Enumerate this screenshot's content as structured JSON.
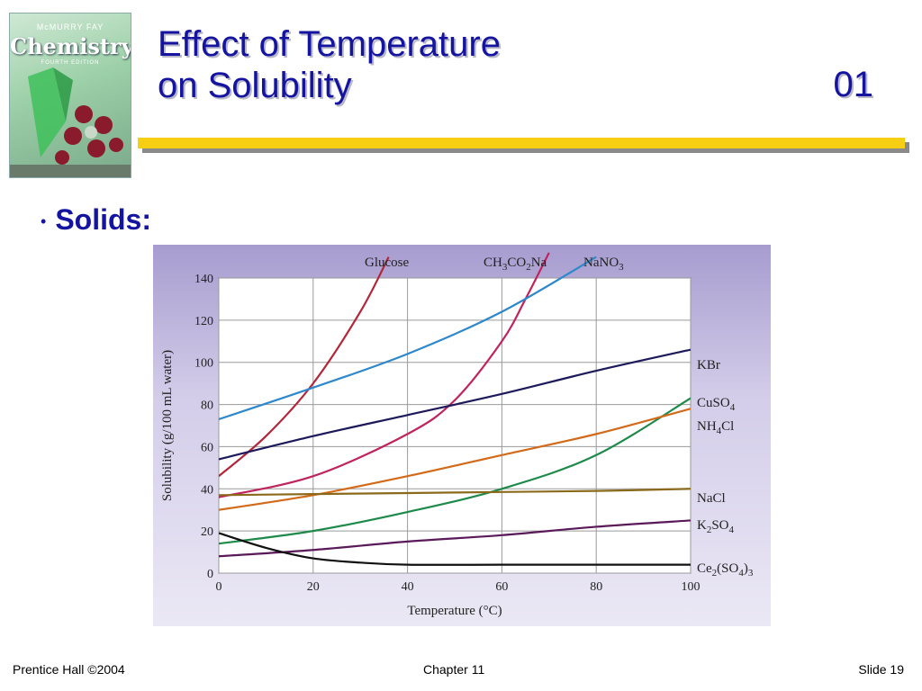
{
  "logo": {
    "authors": "McMURRY  FAY",
    "title": "Chemistry",
    "edition": "FOURTH EDITION"
  },
  "slide": {
    "title_line1": "Effect of Temperature",
    "title_line2": "on Solubility",
    "number": "01",
    "bullet": "Solids:"
  },
  "footer": {
    "left": "Prentice Hall ©2004",
    "center": "Chapter 11",
    "right": "Slide 19"
  },
  "colors": {
    "title": "#1414a0",
    "rule": "#f7cf12"
  },
  "chart_data": {
    "type": "line",
    "xlabel": "Temperature (°C)",
    "ylabel": "Solubility (g/100 mL water)",
    "xlim": [
      0,
      100
    ],
    "ylim": [
      0,
      140
    ],
    "xticks": [
      0,
      20,
      40,
      60,
      80,
      100
    ],
    "yticks": [
      0,
      20,
      40,
      60,
      80,
      100,
      120,
      140
    ],
    "grid": true,
    "series": [
      {
        "name": "Glucose",
        "label_html": "Glucose",
        "color": "#b3263a",
        "x": [
          0,
          10,
          20,
          30,
          36
        ],
        "y": [
          46,
          65,
          90,
          124,
          150
        ]
      },
      {
        "name": "CH3CO2Na",
        "label_html": "CH<tspan dy='4' font-size='11'>3</tspan><tspan dy='-4'>CO</tspan><tspan dy='4' font-size='11'>2</tspan><tspan dy='-4'>Na</tspan>",
        "color": "#c0245e",
        "x": [
          0,
          20,
          40,
          50,
          60,
          65,
          70
        ],
        "y": [
          36,
          46,
          66,
          82,
          110,
          130,
          152
        ]
      },
      {
        "name": "NaNO3",
        "label_html": "NaNO<tspan dy='4' font-size='11'>3</tspan>",
        "color": "#2e88cc",
        "x": [
          0,
          20,
          40,
          60,
          80
        ],
        "y": [
          73,
          88,
          104,
          124,
          150
        ]
      },
      {
        "name": "KBr",
        "label_html": "KBr",
        "color": "#1d1a5c",
        "x": [
          0,
          20,
          40,
          60,
          80,
          100
        ],
        "y": [
          54,
          65,
          75,
          85,
          96,
          106
        ]
      },
      {
        "name": "CuSO4",
        "label_html": "CuSO<tspan dy='4' font-size='11'>4</tspan>",
        "color": "#1e8a4a",
        "x": [
          0,
          20,
          40,
          60,
          80,
          100
        ],
        "y": [
          14,
          20,
          29,
          40,
          56,
          83
        ]
      },
      {
        "name": "NH4Cl",
        "label_html": "NH<tspan dy='4' font-size='11'>4</tspan><tspan dy='-4'>Cl</tspan>",
        "color": "#d36a1a",
        "x": [
          0,
          20,
          40,
          60,
          80,
          100
        ],
        "y": [
          30,
          37,
          46,
          56,
          66,
          78
        ]
      },
      {
        "name": "NaCl",
        "label_html": "NaCl",
        "color": "#8a6a1a",
        "x": [
          0,
          20,
          40,
          60,
          80,
          100
        ],
        "y": [
          37,
          37.5,
          38,
          38.5,
          39,
          40
        ]
      },
      {
        "name": "K2SO4",
        "label_html": "K<tspan dy='4' font-size='11'>2</tspan><tspan dy='-4'>SO</tspan><tspan dy='4' font-size='11'>4</tspan>",
        "color": "#5a1a5a",
        "x": [
          0,
          20,
          40,
          60,
          80,
          100
        ],
        "y": [
          8,
          11,
          15,
          18,
          22,
          25
        ]
      },
      {
        "name": "Ce2(SO4)3",
        "label_html": "Ce<tspan dy='4' font-size='11'>2</tspan><tspan dy='-4'>(SO</tspan><tspan dy='4' font-size='11'>4</tspan><tspan dy='-4'>)</tspan><tspan dy='4' font-size='11'>3</tspan>",
        "color": "#111111",
        "x": [
          0,
          10,
          20,
          30,
          40,
          60,
          80,
          100
        ],
        "y": [
          19,
          12,
          7,
          5,
          4,
          4,
          4,
          4
        ]
      }
    ]
  }
}
